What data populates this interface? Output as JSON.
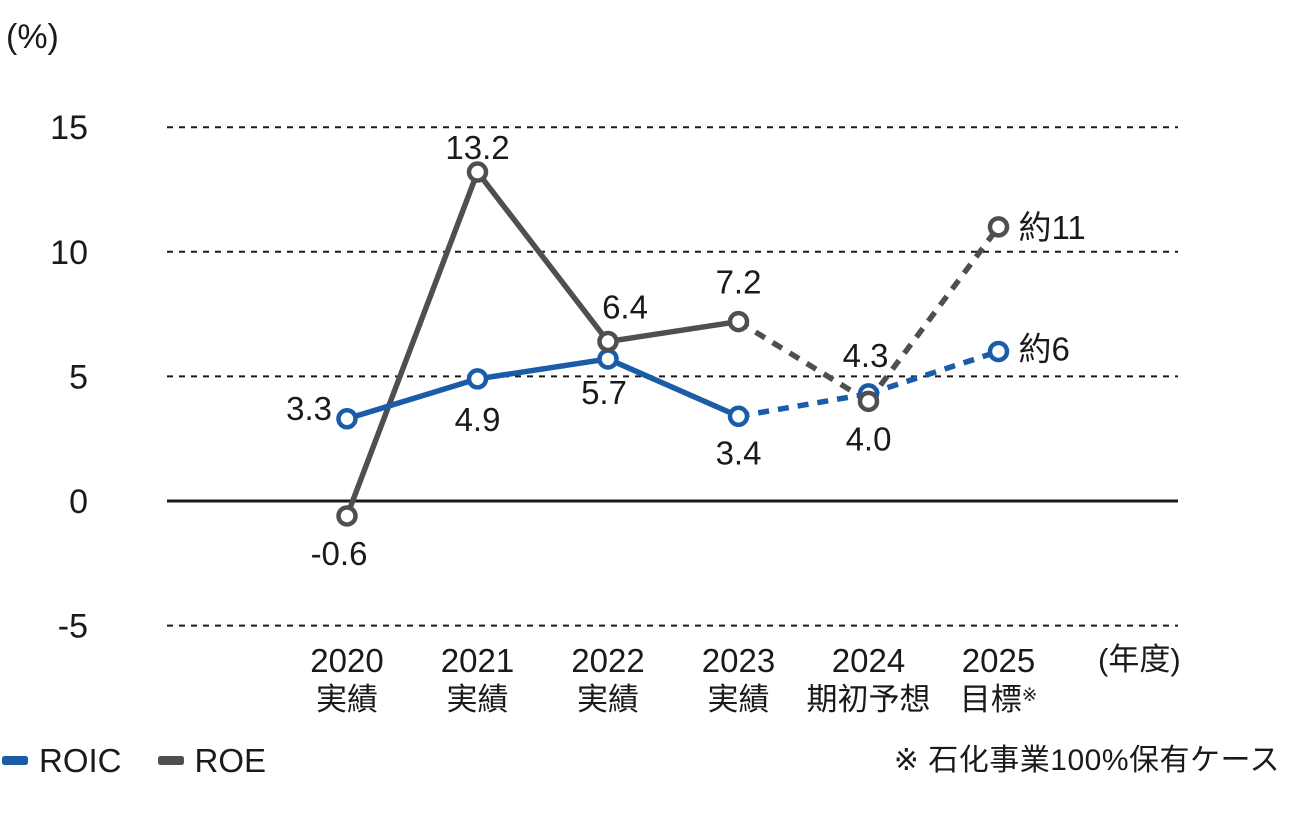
{
  "chart_data": {
    "type": "line",
    "unit_label": "(%)",
    "x_axis_unit": "(年度)",
    "y_ticks": [
      15,
      10,
      5,
      0,
      -5
    ],
    "ylim": [
      -6.5,
      16.5
    ],
    "grid": "horizontal-dashed",
    "legend_position": "bottom-left",
    "categories": [
      {
        "year": "2020",
        "sub": "実績",
        "sup": ""
      },
      {
        "year": "2021",
        "sub": "実績",
        "sup": ""
      },
      {
        "year": "2022",
        "sub": "実績",
        "sup": ""
      },
      {
        "year": "2023",
        "sub": "実績",
        "sup": ""
      },
      {
        "year": "2024",
        "sub": "期初予想",
        "sup": ""
      },
      {
        "year": "2025",
        "sub": "目標",
        "sup": "※"
      }
    ],
    "series": [
      {
        "name": "ROE",
        "color": "#4f4f4f",
        "values": [
          -0.6,
          13.2,
          6.4,
          7.2,
          4.0,
          11
        ],
        "point_labels": [
          "-0.6",
          "13.2",
          "6.4",
          "7.2",
          "4.0",
          "約11"
        ],
        "dashed_from_index": 3
      },
      {
        "name": "ROIC",
        "color": "#1b5ca8",
        "values": [
          3.3,
          4.9,
          5.7,
          3.4,
          4.3,
          6
        ],
        "point_labels": [
          "3.3",
          "4.9",
          "5.7",
          "3.4",
          "4.3",
          "約6"
        ],
        "dashed_from_index": 3
      }
    ],
    "footnote": "※ 石化事業100%保有ケース"
  },
  "legend": {
    "items": [
      {
        "label": "ROIC",
        "color": "#1b5ca8"
      },
      {
        "label": "ROE",
        "color": "#4f4f4f"
      }
    ]
  },
  "colors": {
    "text": "#1a1a1a",
    "grid": "#1a1a1a",
    "background": "#ffffff"
  }
}
